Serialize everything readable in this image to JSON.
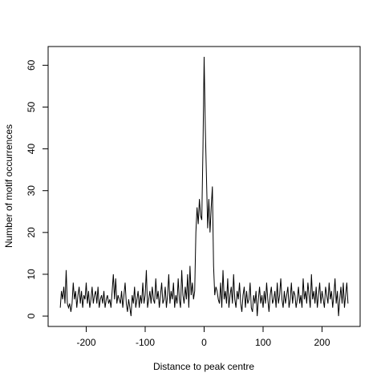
{
  "chart_data": {
    "type": "line",
    "xlabel": "Distance to peak centre",
    "ylabel": "Number of motif occurrences",
    "color": "#000000",
    "xlim": [
      -264.6,
      264.6
    ],
    "ylim": [
      -2.48,
      64.48
    ],
    "xticks": [
      -200,
      -100,
      0,
      100,
      200
    ],
    "yticks": [
      0,
      10,
      20,
      30,
      40,
      50,
      60
    ],
    "x": [
      -244,
      -242,
      -240,
      -238,
      -236,
      -234,
      -232,
      -230,
      -228,
      -226,
      -224,
      -222,
      -220,
      -218,
      -216,
      -214,
      -212,
      -210,
      -208,
      -206,
      -204,
      -202,
      -200,
      -198,
      -196,
      -194,
      -192,
      -190,
      -188,
      -186,
      -184,
      -182,
      -180,
      -178,
      -176,
      -174,
      -172,
      -170,
      -168,
      -166,
      -164,
      -162,
      -160,
      -158,
      -156,
      -154,
      -152,
      -150,
      -148,
      -146,
      -144,
      -142,
      -140,
      -138,
      -136,
      -134,
      -132,
      -130,
      -128,
      -126,
      -124,
      -122,
      -120,
      -118,
      -116,
      -114,
      -112,
      -110,
      -108,
      -106,
      -104,
      -102,
      -100,
      -98,
      -96,
      -94,
      -92,
      -90,
      -88,
      -86,
      -84,
      -82,
      -80,
      -78,
      -76,
      -74,
      -72,
      -70,
      -68,
      -66,
      -64,
      -62,
      -60,
      -58,
      -56,
      -54,
      -52,
      -50,
      -48,
      -46,
      -44,
      -42,
      -40,
      -38,
      -36,
      -34,
      -32,
      -30,
      -28,
      -26,
      -24,
      -22,
      -20,
      -18,
      -16,
      -14,
      -12,
      -10,
      -8,
      -6,
      -4,
      -2,
      0,
      2,
      4,
      6,
      8,
      10,
      12,
      14,
      16,
      18,
      20,
      22,
      24,
      26,
      28,
      30,
      32,
      34,
      36,
      38,
      40,
      42,
      44,
      46,
      48,
      50,
      52,
      54,
      56,
      58,
      60,
      62,
      64,
      66,
      68,
      70,
      72,
      74,
      76,
      78,
      80,
      82,
      84,
      86,
      88,
      90,
      92,
      94,
      96,
      98,
      100,
      102,
      104,
      106,
      108,
      110,
      112,
      114,
      116,
      118,
      120,
      122,
      124,
      126,
      128,
      130,
      132,
      134,
      136,
      138,
      140,
      142,
      144,
      146,
      148,
      150,
      152,
      154,
      156,
      158,
      160,
      162,
      164,
      166,
      168,
      170,
      172,
      174,
      176,
      178,
      180,
      182,
      184,
      186,
      188,
      190,
      192,
      194,
      196,
      198,
      200,
      202,
      204,
      206,
      208,
      210,
      212,
      214,
      216,
      218,
      220,
      222,
      224,
      226,
      228,
      230,
      232,
      234,
      236,
      238,
      240,
      242,
      244
    ],
    "values": [
      2,
      6,
      4,
      7,
      3,
      11,
      3,
      2,
      3,
      1,
      3,
      8,
      4,
      6,
      2,
      5,
      7,
      3,
      6,
      2,
      5,
      4,
      8,
      3,
      6,
      2,
      4,
      7,
      3,
      5,
      6,
      3,
      7,
      2,
      4,
      5,
      3,
      6,
      2,
      4,
      5,
      3,
      4,
      2,
      6,
      10,
      4,
      9,
      3,
      5,
      4,
      3,
      6,
      2,
      5,
      8,
      3,
      1,
      4,
      2,
      0,
      5,
      3,
      7,
      2,
      4,
      6,
      2,
      5,
      3,
      8,
      3,
      5,
      11,
      2,
      4,
      6,
      3,
      7,
      4,
      3,
      9,
      4,
      6,
      2,
      5,
      8,
      3,
      4,
      7,
      2,
      5,
      10,
      3,
      6,
      4,
      8,
      2,
      5,
      3,
      9,
      4,
      2,
      11,
      5,
      3,
      7,
      4,
      10,
      2,
      12,
      5,
      8,
      4,
      6,
      20,
      26,
      22,
      28,
      24,
      23,
      40,
      62,
      45,
      33,
      21,
      28,
      20,
      26,
      31,
      12,
      5,
      7,
      6,
      4,
      3,
      8,
      2,
      11,
      4,
      6,
      3,
      9,
      2,
      5,
      7,
      3,
      10,
      4,
      2,
      6,
      4,
      8,
      3,
      1,
      5,
      7,
      2,
      6,
      3,
      4,
      8,
      2,
      1,
      5,
      3,
      6,
      0,
      4,
      7,
      3,
      5,
      2,
      6,
      3,
      8,
      4,
      1,
      5,
      7,
      3,
      4,
      6,
      2,
      8,
      3,
      5,
      9,
      4,
      2,
      6,
      3,
      5,
      7,
      2,
      4,
      8,
      3,
      6,
      5,
      2,
      4,
      7,
      3,
      5,
      2,
      9,
      4,
      6,
      3,
      8,
      5,
      2,
      10,
      4,
      6,
      3,
      7,
      2,
      5,
      8,
      3,
      6,
      4,
      2,
      7,
      5,
      3,
      8,
      4,
      6,
      2,
      5,
      9,
      3,
      6,
      0,
      4,
      7,
      3,
      8,
      2,
      5,
      8,
      3
    ]
  }
}
